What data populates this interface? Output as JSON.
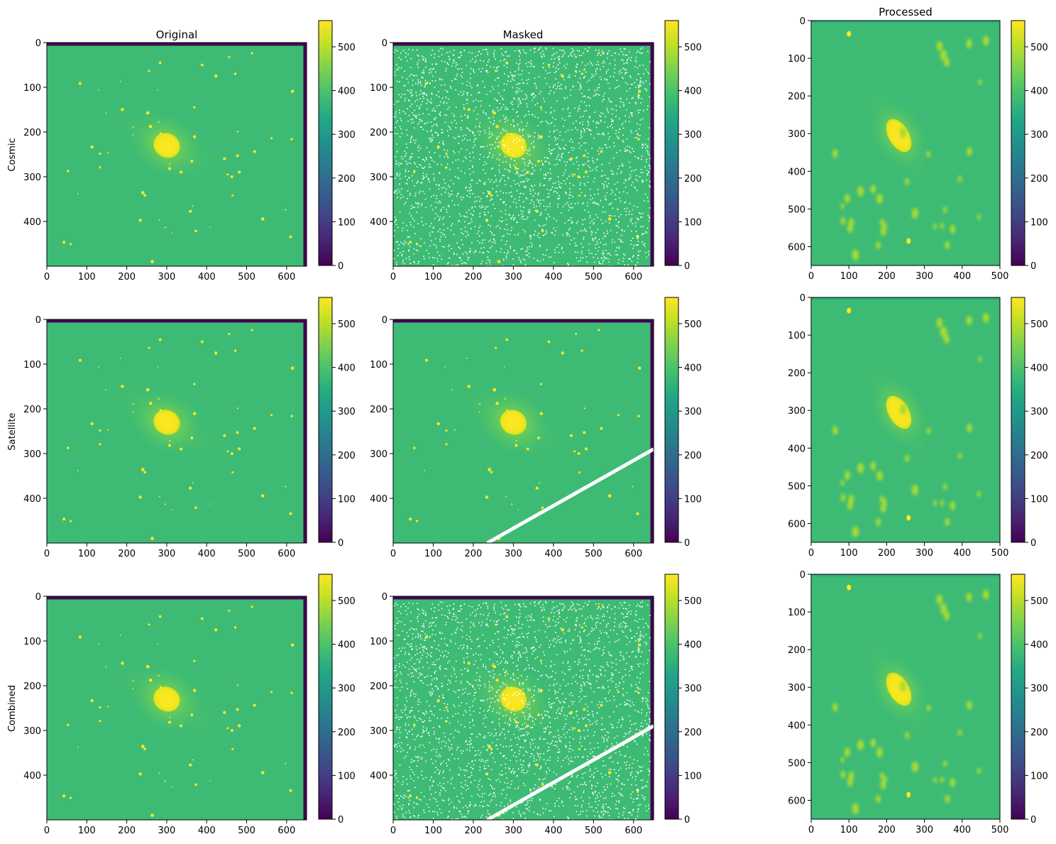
{
  "chart_data": {
    "type": "heatmap",
    "layout": "3x3 grid of image panels, each with its own colorbar",
    "colormap": "viridis",
    "colorbar": {
      "range": [
        0,
        560
      ],
      "ticks": [
        "0",
        "100",
        "200",
        "300",
        "400",
        "500"
      ]
    },
    "column_titles": [
      "Original",
      "Masked",
      "Processed"
    ],
    "row_labels": [
      "Cosmic",
      "Satellite",
      "Combined"
    ],
    "axes": {
      "original": {
        "x_ticks": [
          "0",
          "100",
          "200",
          "300",
          "400",
          "500",
          "600"
        ],
        "y_ticks": [
          "0",
          "100",
          "200",
          "300",
          "400"
        ],
        "xlim": [
          0,
          650
        ],
        "ylim": [
          500,
          0
        ]
      },
      "masked": {
        "x_ticks": [
          "0",
          "100",
          "200",
          "300",
          "400",
          "500",
          "600"
        ],
        "y_ticks": [
          "0",
          "100",
          "200",
          "300",
          "400"
        ],
        "xlim": [
          0,
          650
        ],
        "ylim": [
          500,
          0
        ]
      },
      "processed": {
        "x_ticks": [
          "0",
          "100",
          "200",
          "300",
          "400",
          "500"
        ],
        "y_ticks": [
          "0",
          "100",
          "200",
          "300",
          "400",
          "500",
          "600"
        ],
        "xlim": [
          0,
          500
        ],
        "ylim": [
          650,
          0
        ]
      }
    },
    "content": {
      "background_value": 370,
      "galaxy_center": [
        300,
        230
      ],
      "galaxy_orientation": "diagonal, upper-left to lower-right",
      "mask_types": [
        "cosmic",
        "satellite",
        "combined"
      ],
      "satellite_trail": {
        "from": [
          235,
          500
        ],
        "to": [
          650,
          290
        ]
      }
    }
  }
}
